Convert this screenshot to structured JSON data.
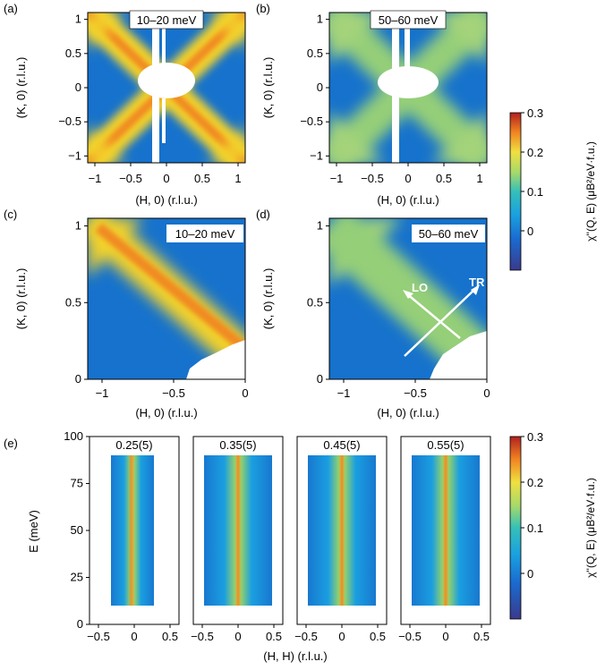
{
  "panel_letters": {
    "a": "(a)",
    "b": "(b)",
    "c": "(c)",
    "d": "(d)",
    "e": "(e)"
  },
  "energy_labels": {
    "low": "10–20 meV",
    "high": "50–60 meV"
  },
  "axis_labels": {
    "h0": "(H, 0) (r.l.u.)",
    "k0": "(K, 0) (r.l.u.)",
    "hh": "(H, H) (r.l.u.)",
    "energy": "E (meV)",
    "colorbar": "χ''(Q, E) (μB²/eV·f.u.)"
  },
  "arrow_labels": {
    "lo": "LO",
    "tr": "TR"
  },
  "ticks": {
    "ab_x": [
      "−1",
      "−0.5",
      "0",
      "0.5",
      "1"
    ],
    "ab_y": [
      "1",
      "0.5",
      "0",
      "−0.5",
      "−1"
    ],
    "cd_x": [
      "−1",
      "−0.5",
      "0"
    ],
    "cd_y": [
      "1",
      "0.5",
      "0"
    ],
    "e_x": [
      "−0.5",
      "0",
      "0.5"
    ],
    "e_y": [
      "100",
      "75",
      "50",
      "25",
      "0"
    ],
    "colorbar": [
      "0.3",
      "0.2",
      "0.1",
      "0"
    ]
  },
  "chart_data": [
    {
      "panel": "a",
      "type": "heatmap",
      "energy_window": "10–20 meV",
      "x_label": "(H, 0) (r.l.u.)",
      "y_label": "(K, 0) (r.l.u.)",
      "xlim": [
        -1.1,
        1.1
      ],
      "ylim": [
        -1.1,
        1.1
      ],
      "feature": "X-shaped intensity along diagonals, strong (yellow-orange)"
    },
    {
      "panel": "b",
      "type": "heatmap",
      "energy_window": "50–60 meV",
      "x_label": "(H, 0) (r.l.u.)",
      "y_label": "(K, 0) (r.l.u.)",
      "xlim": [
        -1.1,
        1.1
      ],
      "ylim": [
        -1.1,
        1.1
      ],
      "feature": "broader, weaker X-shaped intensity (green)"
    },
    {
      "panel": "c",
      "type": "heatmap",
      "energy_window": "10–20 meV",
      "x_label": "(H, 0) (r.l.u.)",
      "y_label": "(K, 0) (r.l.u.)",
      "xlim": [
        -1.1,
        0
      ],
      "ylim": [
        0,
        1.05
      ]
    },
    {
      "panel": "d",
      "type": "heatmap",
      "energy_window": "50–60 meV",
      "x_label": "(H, 0) (r.l.u.)",
      "y_label": "(K, 0) (r.l.u.)",
      "xlim": [
        -1.1,
        0
      ],
      "ylim": [
        0,
        1.05
      ],
      "annotations": [
        "LO",
        "TR"
      ]
    },
    {
      "panel": "e",
      "type": "heatmap",
      "x_label": "(H, H) (r.l.u.)",
      "y_label": "E (meV)",
      "ylim": [
        0,
        100
      ],
      "subpanels": [
        {
          "title": "0.25(5)",
          "xlim": [
            -0.5,
            0.5
          ]
        },
        {
          "title": "0.35(5)",
          "xlim": [
            -0.5,
            0.5
          ]
        },
        {
          "title": "0.45(5)",
          "xlim": [
            -0.5,
            0.5
          ]
        },
        {
          "title": "0.55(5)",
          "xlim": [
            -0.5,
            0.5
          ]
        }
      ]
    },
    {
      "type": "colorbar",
      "label": "χ''(Q, E) (μB²/eV·f.u.)",
      "range": [
        -0.1,
        0.3
      ],
      "ticks": [
        0,
        0.1,
        0.2,
        0.3
      ]
    }
  ]
}
